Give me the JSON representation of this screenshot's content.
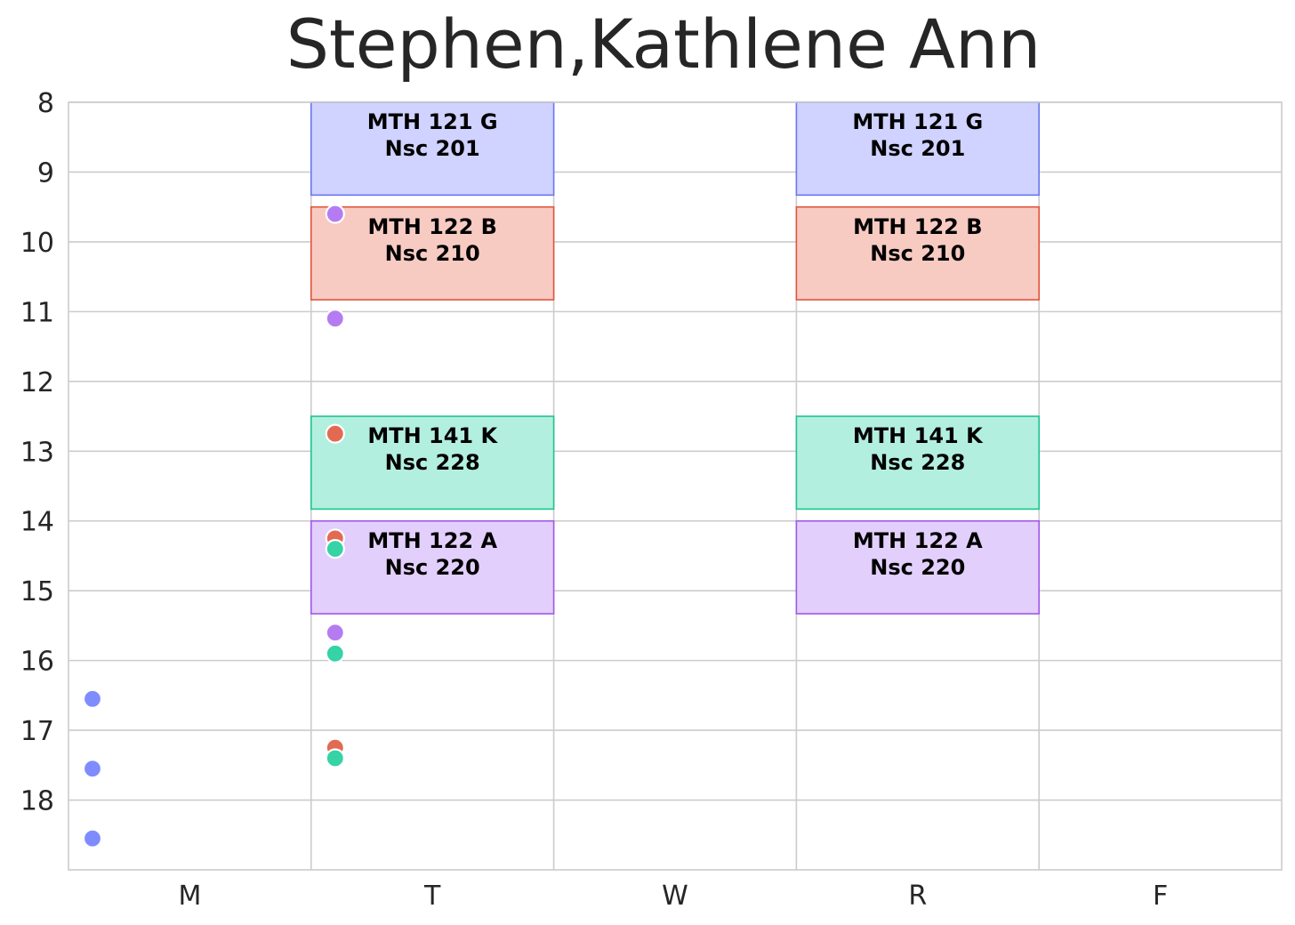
{
  "chart_data": {
    "type": "scatter",
    "title": "Stephen,Kathlene Ann",
    "xlabel": "",
    "ylabel": "",
    "categories": [
      "M",
      "T",
      "W",
      "R",
      "F"
    ],
    "y_ticks": [
      "8",
      "9",
      "10",
      "11",
      "12",
      "13",
      "14",
      "15",
      "16",
      "17",
      "18"
    ],
    "ylim": [
      19.0,
      8.0
    ],
    "y_inverted": true,
    "grid": true,
    "colors": {
      "blue": {
        "fill": "#d0d2ff",
        "edge": "#6a78f0",
        "dot": "#7f8cff"
      },
      "red": {
        "fill": "#f8cbc2",
        "edge": "#e0543c",
        "dot": "#e26a52"
      },
      "green": {
        "fill": "#b3efdf",
        "edge": "#1fc48e",
        "dot": "#35d3a5"
      },
      "purple": {
        "fill": "#e3cffc",
        "edge": "#a058ea",
        "dot": "#b57cf2"
      }
    },
    "blocks": [
      {
        "day": "T",
        "start": 8.0,
        "end": 9.33,
        "course": "MTH 121 G",
        "room": "Nsc 201",
        "color": "blue"
      },
      {
        "day": "R",
        "start": 8.0,
        "end": 9.33,
        "course": "MTH 121 G",
        "room": "Nsc 201",
        "color": "blue"
      },
      {
        "day": "T",
        "start": 9.5,
        "end": 10.83,
        "course": "MTH 122 B",
        "room": "Nsc 210",
        "color": "red"
      },
      {
        "day": "R",
        "start": 9.5,
        "end": 10.83,
        "course": "MTH 122 B",
        "room": "Nsc 210",
        "color": "red"
      },
      {
        "day": "T",
        "start": 12.5,
        "end": 13.83,
        "course": "MTH 141 K",
        "room": "Nsc 228",
        "color": "green"
      },
      {
        "day": "R",
        "start": 12.5,
        "end": 13.83,
        "course": "MTH 141 K",
        "room": "Nsc 228",
        "color": "green"
      },
      {
        "day": "T",
        "start": 14.0,
        "end": 15.33,
        "course": "MTH 122 A",
        "room": "Nsc 220",
        "color": "purple"
      },
      {
        "day": "R",
        "start": 14.0,
        "end": 15.33,
        "course": "MTH 122 A",
        "room": "Nsc 220",
        "color": "purple"
      }
    ],
    "points": [
      {
        "day": "M",
        "y": 16.55,
        "color": "blue"
      },
      {
        "day": "M",
        "y": 17.55,
        "color": "blue"
      },
      {
        "day": "M",
        "y": 18.55,
        "color": "blue"
      },
      {
        "day": "T",
        "y": 9.6,
        "color": "purple"
      },
      {
        "day": "T",
        "y": 11.1,
        "color": "purple"
      },
      {
        "day": "T",
        "y": 12.75,
        "color": "red"
      },
      {
        "day": "T",
        "y": 14.25,
        "color": "red"
      },
      {
        "day": "T",
        "y": 14.4,
        "color": "green"
      },
      {
        "day": "T",
        "y": 15.6,
        "color": "purple"
      },
      {
        "day": "T",
        "y": 15.9,
        "color": "green"
      },
      {
        "day": "T",
        "y": 17.25,
        "color": "red"
      },
      {
        "day": "T",
        "y": 17.4,
        "color": "green"
      }
    ]
  }
}
